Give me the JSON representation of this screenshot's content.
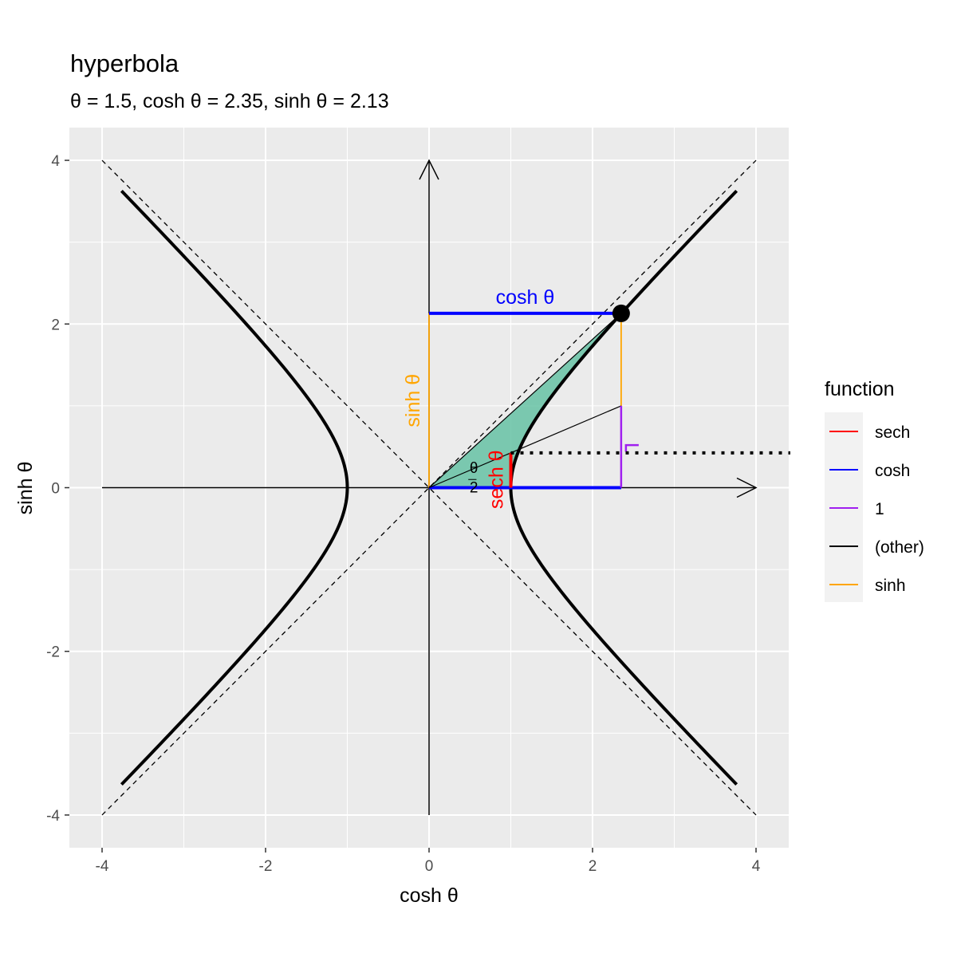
{
  "chart_data": {
    "type": "line",
    "title": "hyperbola",
    "subtitle": "θ = 1.5, cosh θ = 2.35, sinh θ = 2.13",
    "xlabel": "cosh θ",
    "ylabel": "sinh θ",
    "xlim": [
      -4.4,
      4.4
    ],
    "ylim": [
      -4.4,
      4.4
    ],
    "xticks": [
      -4,
      -2,
      0,
      2,
      4
    ],
    "yticks": [
      -4,
      -2,
      0,
      2,
      4
    ],
    "xtick_labels": [
      "-4",
      "-2",
      "0",
      "2",
      "4"
    ],
    "ytick_labels": [
      "-4",
      "-2",
      "0",
      "2",
      "4"
    ],
    "grid": true,
    "theta": 1.5,
    "cosh": 2.35,
    "sinh": 2.13,
    "sech": 0.425,
    "hyperbola_t_max": 2.0,
    "asymptote_extent": 4,
    "legend": {
      "title": "function",
      "position": "right",
      "entries": [
        {
          "label": "sech",
          "color": "#ff0000"
        },
        {
          "label": "cosh",
          "color": "#0000ff"
        },
        {
          "label": "1",
          "color": "#a020f0"
        },
        {
          "label": "(other)",
          "color": "#000000"
        },
        {
          "label": "sinh",
          "color": "#ffa500"
        }
      ]
    },
    "annotations": {
      "cosh_label": "cosh θ",
      "sinh_label": "sinh θ",
      "sech_label": "sech θ",
      "theta_label": "θ",
      "half_label": "2"
    },
    "colors": {
      "panel": "#ebebeb",
      "grid": "#ffffff",
      "sector": "#66c2a5",
      "sech": "#ff0000",
      "cosh": "#0000ff",
      "one": "#a020f0",
      "other": "#000000",
      "sinh": "#ffa500"
    }
  }
}
